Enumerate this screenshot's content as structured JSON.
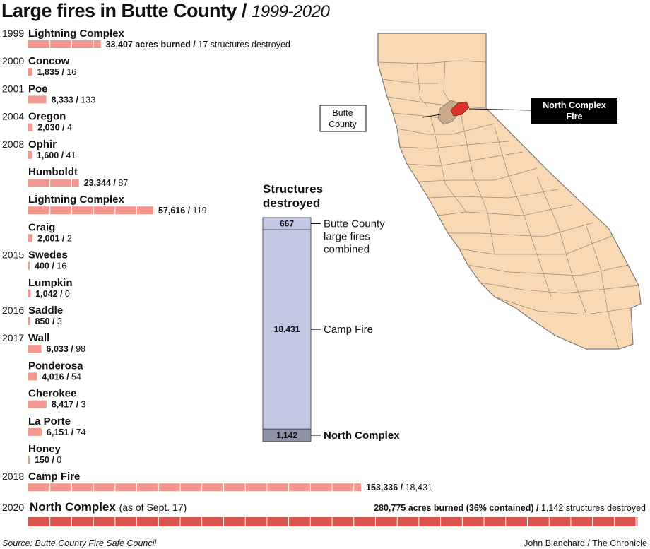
{
  "header": {
    "title": "Large fires in Butte County /",
    "subtitle": "1999-2020"
  },
  "colors": {
    "bar": "#f4978e",
    "bar_big": "#d9534f",
    "bar_divider": "#ffffff",
    "stack_main": "#c3c8e2",
    "stack_dark": "#8e93a8",
    "map_fill": "#f8d9b4",
    "map_stroke": "#7a7a7a",
    "butte": "#c8aa88",
    "fire": "#d9332b",
    "callout_bg": "#000000"
  },
  "chart_data": [
    {
      "type": "bar",
      "title": "Large fires in Butte County / 1999-2020",
      "fires": [
        {
          "year": "1999",
          "name": "Lightning Complex",
          "acres": 33407,
          "structures": 17,
          "acres_text": "33,407",
          "structures_text": "17",
          "acres_suffix": " acres burned",
          "struct_suffix": " structures destroyed"
        },
        {
          "year": "2000",
          "name": "Concow",
          "acres": 1835,
          "structures": 16,
          "acres_text": "1,835",
          "structures_text": "16"
        },
        {
          "year": "2001",
          "name": "Poe",
          "acres": 8333,
          "structures": 133,
          "acres_text": "8,333",
          "structures_text": "133"
        },
        {
          "year": "2004",
          "name": "Oregon",
          "acres": 2030,
          "structures": 4,
          "acres_text": "2,030",
          "structures_text": "4"
        },
        {
          "year": "2008",
          "name": "Ophir",
          "acres": 1600,
          "structures": 41,
          "acres_text": "1,600",
          "structures_text": "41"
        },
        {
          "year": "",
          "name": "Humboldt",
          "acres": 23344,
          "structures": 87,
          "acres_text": "23,344",
          "structures_text": "87"
        },
        {
          "year": "",
          "name": "Lightning Complex",
          "acres": 57616,
          "structures": 119,
          "acres_text": "57,616",
          "structures_text": "119"
        },
        {
          "year": "",
          "name": "Craig",
          "acres": 2001,
          "structures": 2,
          "acres_text": "2,001",
          "structures_text": "2"
        },
        {
          "year": "2015",
          "name": "Swedes",
          "acres": 400,
          "structures": 16,
          "acres_text": "400",
          "structures_text": "16"
        },
        {
          "year": "",
          "name": "Lumpkin",
          "acres": 1042,
          "structures": 0,
          "acres_text": "1,042",
          "structures_text": "0"
        },
        {
          "year": "2016",
          "name": "Saddle",
          "acres": 850,
          "structures": 3,
          "acres_text": "850",
          "structures_text": "3"
        },
        {
          "year": "2017",
          "name": "Wall",
          "acres": 6033,
          "structures": 98,
          "acres_text": "6,033",
          "structures_text": "98"
        },
        {
          "year": "",
          "name": "Ponderosa",
          "acres": 4016,
          "structures": 54,
          "acres_text": "4,016",
          "structures_text": "54"
        },
        {
          "year": "",
          "name": "Cherokee",
          "acres": 8417,
          "structures": 3,
          "acres_text": "8,417",
          "structures_text": "3"
        },
        {
          "year": "",
          "name": "La Porte",
          "acres": 6151,
          "structures": 74,
          "acres_text": "6,151",
          "structures_text": "74"
        },
        {
          "year": "",
          "name": "Honey",
          "acres": 150,
          "structures": 0,
          "acres_text": "150",
          "structures_text": "0"
        },
        {
          "year": "2018",
          "name": "Camp Fire",
          "acres": 153336,
          "structures": 18431,
          "acres_text": "153,336",
          "structures_text": "18,431"
        }
      ],
      "north_complex": {
        "year": "2020",
        "name": "North Complex",
        "note": "(as of Sept. 17)",
        "acres": 280775,
        "structures": 1142,
        "acres_text": "280,775",
        "acres_suffix": "acres burned",
        "contained": "(36% contained)",
        "structures_text": "1,142",
        "struct_suffix": "structures destroyed"
      }
    },
    {
      "type": "bar",
      "title": "Structures destroyed",
      "segments": [
        {
          "name": "Butte County large fires combined",
          "value": 667,
          "value_text": "667",
          "label_lines": [
            "Butte County",
            "large fires",
            "combined"
          ]
        },
        {
          "name": "Camp Fire",
          "value": 18431,
          "value_text": "18,431",
          "label_lines": [
            "Camp Fire"
          ]
        },
        {
          "name": "North Complex",
          "value": 1142,
          "value_text": "1,142",
          "label_lines": [
            "North Complex"
          ]
        }
      ]
    }
  ],
  "structures_title": [
    "Structures",
    "destroyed"
  ],
  "map": {
    "butte_label": [
      "Butte",
      "County"
    ],
    "fire_label": [
      "North Complex",
      "Fire"
    ]
  },
  "footer": {
    "source": "Source: Butte County Fire Safe Council",
    "credit": "John Blanchard / The Chronicle"
  }
}
